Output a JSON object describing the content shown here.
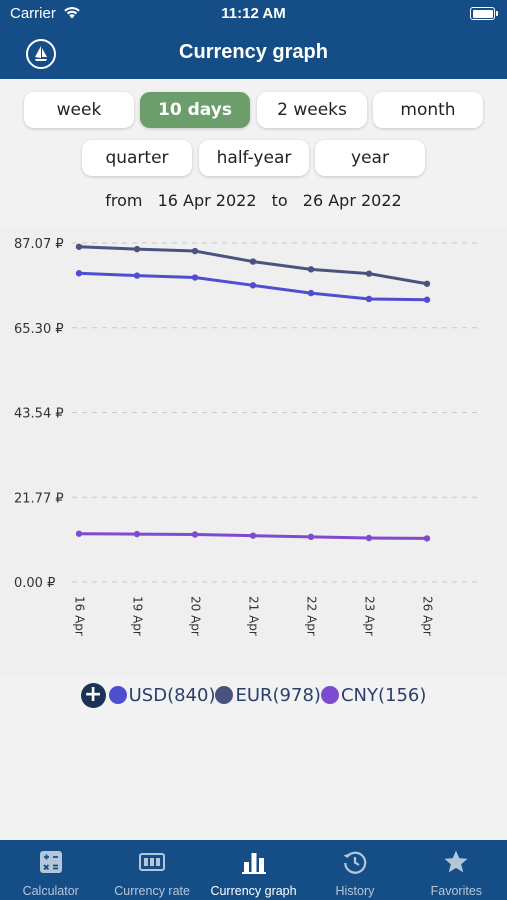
{
  "status_bar": {
    "carrier": "Carrier",
    "time": "11:12 AM"
  },
  "header": {
    "title": "Currency graph",
    "logo_icon": "sailboat-icon"
  },
  "periods": {
    "week": "week",
    "ten_days": "10 days",
    "two_weeks": "2 weeks",
    "month": "month",
    "quarter": "quarter",
    "half_year": "half-year",
    "year": "year",
    "selected": "10 days"
  },
  "range": {
    "from_label": "from",
    "from_date": "16 Apr 2022",
    "to_label": "to",
    "to_date": "26 Apr 2022"
  },
  "chart_data": {
    "type": "line",
    "x": [
      "16 Apr",
      "19 Apr",
      "20 Apr",
      "21 Apr",
      "22 Apr",
      "23 Apr",
      "26 Apr"
    ],
    "y_ticks": [
      "87.07 ₽",
      "65.30 ₽",
      "43.54 ₽",
      "21.77 ₽",
      "0.00 ₽"
    ],
    "ylim": [
      0,
      87.07
    ],
    "grid": true,
    "series": [
      {
        "name": "EUR(978)",
        "color": "#4a5280",
        "values": [
          86.1,
          85.5,
          85.0,
          82.3,
          80.3,
          79.2,
          76.6
        ]
      },
      {
        "name": "USD(840)",
        "color": "#4e4fd0",
        "values": [
          79.3,
          78.7,
          78.2,
          76.2,
          74.2,
          72.7,
          72.5
        ]
      },
      {
        "name": "CNY(156)",
        "color": "#7e4ad0",
        "values": [
          12.4,
          12.3,
          12.2,
          11.9,
          11.6,
          11.3,
          11.2
        ]
      }
    ]
  },
  "legend": {
    "add_symbol": "+",
    "items": [
      {
        "label": "USD(840)",
        "color": "#4e4fd0"
      },
      {
        "label": "EUR(978)",
        "color": "#4a5280"
      },
      {
        "label": "CNY(156)",
        "color": "#7e4ad0"
      }
    ]
  },
  "tabbar": {
    "items": [
      {
        "label": "Calculator",
        "icon": "calculator-icon"
      },
      {
        "label": "Currency rate",
        "icon": "rate-board-icon"
      },
      {
        "label": "Currency graph",
        "icon": "bar-chart-icon"
      },
      {
        "label": "History",
        "icon": "history-icon"
      },
      {
        "label": "Favorites",
        "icon": "star-icon"
      }
    ],
    "selected": "Currency graph"
  },
  "colors": {
    "brand": "#154e86",
    "accent_green": "#6c9e6b"
  }
}
